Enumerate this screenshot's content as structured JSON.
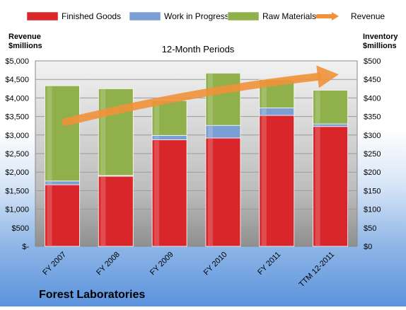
{
  "chart_data": {
    "type": "bar",
    "subtitle": "12-Month Periods",
    "company": "Forest Laboratories",
    "categories": [
      "FY 2007",
      "FY 2008",
      "FY 2009",
      "FY 2010",
      "FY 2011",
      "TTM 12-2011"
    ],
    "stacked": true,
    "y_left": {
      "label_line1": "Revenue",
      "label_line2": "$millions",
      "ylim": [
        0,
        5000
      ],
      "ticks": [
        0,
        500,
        1000,
        1500,
        2000,
        2500,
        3000,
        3500,
        4000,
        4500,
        5000
      ],
      "tick_labels": [
        "$-",
        "$500",
        "$1,000",
        "$1,500",
        "$2,000",
        "$2,500",
        "$3,000",
        "$3,500",
        "$4,000",
        "$4,500",
        "$5,000"
      ]
    },
    "y_right": {
      "label_line1": "Inventory",
      "label_line2": "$millions",
      "ylim": [
        0,
        500
      ],
      "ticks": [
        0,
        50,
        100,
        150,
        200,
        250,
        300,
        350,
        400,
        450,
        500
      ],
      "tick_labels": [
        "$0",
        "$50",
        "$100",
        "$150",
        "$200",
        "$250",
        "$300",
        "$350",
        "$400",
        "$450",
        "$500"
      ]
    },
    "series": [
      {
        "name": "Finished Goods",
        "axis": "right",
        "kind": "bar",
        "color": "#d9262b",
        "values": [
          166,
          189,
          287,
          292,
          353,
          323
        ]
      },
      {
        "name": "Work in Progress",
        "axis": "right",
        "kind": "bar",
        "color": "#7b9fd4",
        "values": [
          10,
          2,
          12,
          34,
          20,
          7
        ]
      },
      {
        "name": "Raw Materials",
        "axis": "right",
        "kind": "bar",
        "color": "#8fb04a",
        "values": [
          257,
          234,
          94,
          141,
          77,
          91
        ]
      },
      {
        "name": "Revenue",
        "axis": "left",
        "kind": "trend-arrow",
        "color": "#f0923a",
        "start": 3350,
        "end": 4650
      }
    ],
    "grid": true,
    "legend": "top"
  }
}
